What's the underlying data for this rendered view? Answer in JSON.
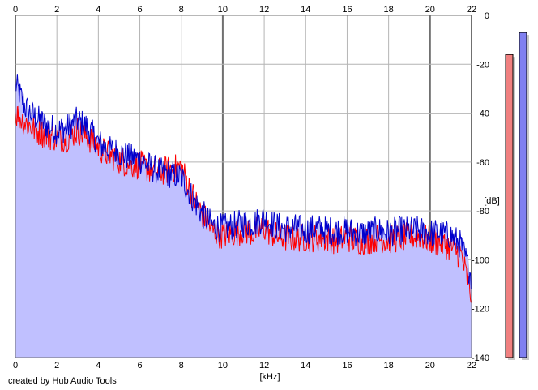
{
  "chart_data": {
    "type": "area",
    "x_unit": "[kHz]",
    "y_unit": "[dB]",
    "xlim": [
      0,
      22
    ],
    "ylim": [
      -140,
      0
    ],
    "x_ticks": [
      0,
      2,
      4,
      6,
      8,
      10,
      12,
      14,
      16,
      18,
      20,
      22
    ],
    "y_ticks": [
      0,
      -20,
      -40,
      -60,
      -80,
      -100,
      -120,
      -140
    ],
    "grid": true,
    "series": [
      {
        "color": "#0000cc",
        "fill": "#c0c0ff",
        "x": [
          0,
          0.5,
          1,
          1.5,
          2,
          2.5,
          3,
          3.5,
          4,
          4.5,
          5,
          5.5,
          6,
          6.5,
          7,
          7.5,
          8,
          8.5,
          9,
          9.5,
          10,
          10.5,
          11,
          11.5,
          12,
          12.5,
          13,
          13.5,
          14,
          14.5,
          15,
          15.5,
          16,
          16.5,
          17,
          17.5,
          18,
          18.5,
          19,
          19.5,
          20,
          20.5,
          21,
          21.5,
          22
        ],
        "values": [
          -28,
          -38,
          -42,
          -45,
          -47,
          -46,
          -43,
          -46,
          -52,
          -55,
          -56,
          -58,
          -59,
          -62,
          -64,
          -65,
          -66,
          -74,
          -81,
          -86,
          -87,
          -86,
          -85,
          -85,
          -83,
          -86,
          -87,
          -87,
          -88,
          -87,
          -88,
          -88,
          -88,
          -89,
          -89,
          -88,
          -89,
          -88,
          -88,
          -88,
          -89,
          -89,
          -90,
          -94,
          -107
        ]
      },
      {
        "color": "#ff0000",
        "x": [
          0,
          0.5,
          1,
          1.5,
          2,
          2.5,
          3,
          3.5,
          4,
          4.5,
          5,
          5.5,
          6,
          6.5,
          7,
          7.5,
          8,
          8.5,
          9,
          9.5,
          10,
          10.5,
          11,
          11.5,
          12,
          12.5,
          13,
          13.5,
          14,
          14.5,
          15,
          15.5,
          16,
          16.5,
          17,
          17.5,
          18,
          18.5,
          19,
          19.5,
          20,
          20.5,
          21,
          21.5,
          22
        ],
        "values": [
          -40,
          -44,
          -47,
          -49,
          -50,
          -50,
          -47,
          -50,
          -54,
          -57,
          -59,
          -61,
          -61,
          -63,
          -64,
          -63,
          -62,
          -73,
          -81,
          -88,
          -90,
          -89,
          -88,
          -89,
          -87,
          -90,
          -91,
          -91,
          -91,
          -91,
          -91,
          -92,
          -91,
          -92,
          -92,
          -91,
          -92,
          -91,
          -91,
          -90,
          -92,
          -93,
          -95,
          -98,
          -115
        ]
      }
    ],
    "level_meters": [
      {
        "color": "#f08080",
        "level_db": -16
      },
      {
        "color": "#8080f0",
        "level_db": -7
      }
    ]
  },
  "footer": {
    "credit": "created by Hub Audio Tools"
  }
}
